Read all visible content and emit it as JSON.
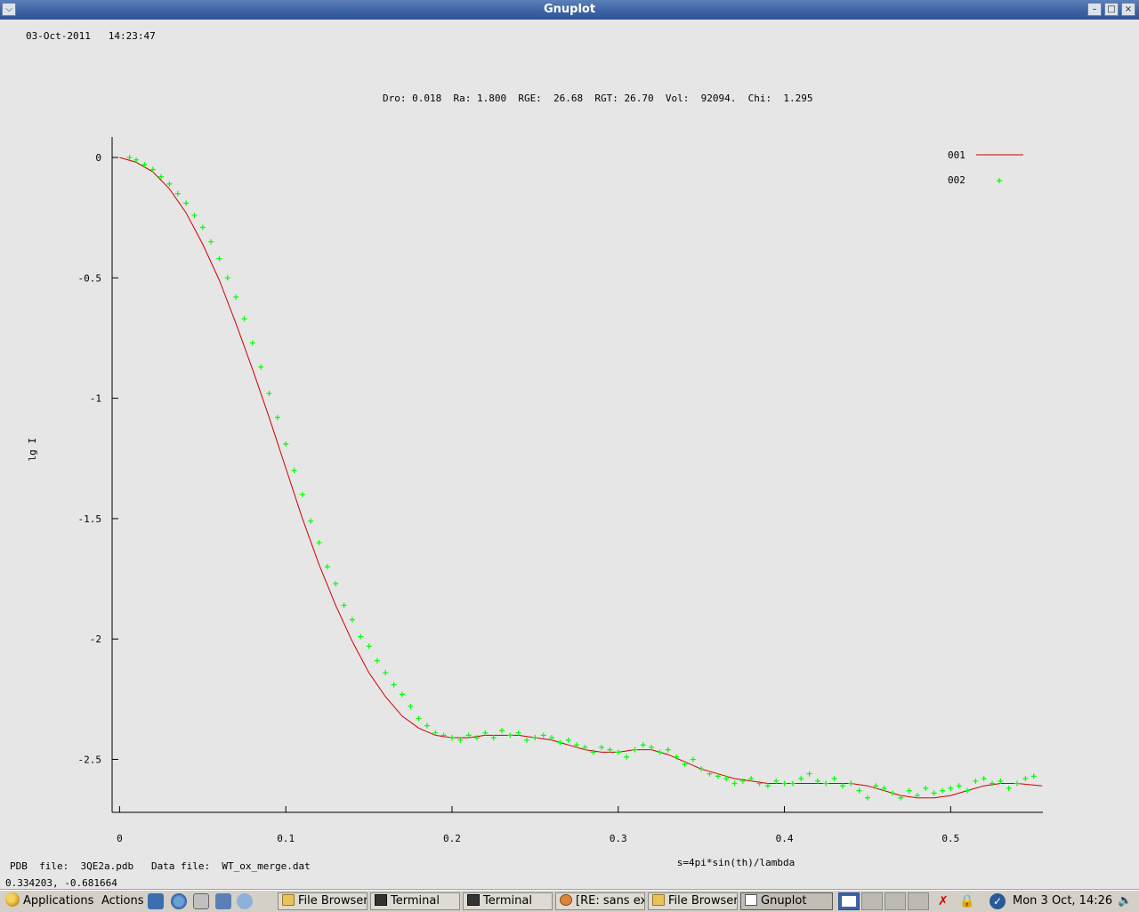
{
  "window": {
    "title": "Gnuplot",
    "buttons": [
      "minimize",
      "maximize",
      "close"
    ]
  },
  "plot": {
    "timestamp": "03-Oct-2011   14:23:47",
    "header": "Dro: 0.018  Ra: 1.800  RGE:  26.68  RGT: 26.70  Vol:  92094.  Chi:  1.295",
    "footer": "PDB  file:  3QE2a.pdb   Data file:  WT_ox_merge.dat",
    "coords": "0.334203, -0.681664"
  },
  "chart_data": {
    "type": "line",
    "xlabel": "s=4pi*sin(th)/lambda",
    "ylabel": "lg I",
    "xlim": [
      -0.0045,
      0.5555
    ],
    "ylim": [
      -2.72,
      0.085
    ],
    "xticks": [
      0,
      0.1,
      0.2,
      0.3,
      0.4,
      0.5
    ],
    "xtick_labels": [
      "0",
      "0.1",
      "0.2",
      "0.3",
      "0.4",
      "0.5"
    ],
    "yticks": [
      0,
      -0.5,
      -1,
      -1.5,
      -2,
      -2.5
    ],
    "ytick_labels": [
      "0",
      "-0.5",
      "-1",
      "-1.5",
      "-2",
      "-2.5"
    ],
    "grid": false,
    "legend_position": "top-right",
    "series": [
      {
        "name": "001",
        "style": "line",
        "color": "#cc0000",
        "x": [
          0.0,
          0.01,
          0.02,
          0.03,
          0.04,
          0.05,
          0.06,
          0.07,
          0.08,
          0.09,
          0.1,
          0.11,
          0.12,
          0.13,
          0.14,
          0.15,
          0.16,
          0.17,
          0.18,
          0.19,
          0.2,
          0.21,
          0.22,
          0.23,
          0.24,
          0.25,
          0.26,
          0.27,
          0.28,
          0.29,
          0.3,
          0.31,
          0.32,
          0.33,
          0.34,
          0.35,
          0.36,
          0.37,
          0.38,
          0.39,
          0.4,
          0.41,
          0.42,
          0.43,
          0.44,
          0.45,
          0.46,
          0.47,
          0.48,
          0.49,
          0.5,
          0.51,
          0.52,
          0.53,
          0.54,
          0.555
        ],
        "y": [
          0.0,
          -0.02,
          -0.06,
          -0.13,
          -0.23,
          -0.36,
          -0.51,
          -0.69,
          -0.88,
          -1.08,
          -1.29,
          -1.5,
          -1.69,
          -1.86,
          -2.01,
          -2.14,
          -2.24,
          -2.32,
          -2.37,
          -2.4,
          -2.41,
          -2.41,
          -2.4,
          -2.4,
          -2.4,
          -2.41,
          -2.42,
          -2.44,
          -2.46,
          -2.47,
          -2.47,
          -2.46,
          -2.46,
          -2.48,
          -2.51,
          -2.54,
          -2.56,
          -2.58,
          -2.59,
          -2.6,
          -2.6,
          -2.6,
          -2.6,
          -2.6,
          -2.6,
          -2.61,
          -2.63,
          -2.65,
          -2.66,
          -2.66,
          -2.65,
          -2.63,
          -2.61,
          -2.6,
          -2.6,
          -2.61
        ]
      },
      {
        "name": "002",
        "style": "points",
        "marker": "+",
        "color": "#00ff00",
        "x": [
          0.006,
          0.01,
          0.015,
          0.02,
          0.025,
          0.03,
          0.035,
          0.04,
          0.045,
          0.05,
          0.055,
          0.06,
          0.065,
          0.07,
          0.075,
          0.08,
          0.085,
          0.09,
          0.095,
          0.1,
          0.105,
          0.11,
          0.115,
          0.12,
          0.125,
          0.13,
          0.135,
          0.14,
          0.145,
          0.15,
          0.155,
          0.16,
          0.165,
          0.17,
          0.175,
          0.18,
          0.185,
          0.19,
          0.195,
          0.2,
          0.205,
          0.21,
          0.215,
          0.22,
          0.225,
          0.23,
          0.235,
          0.24,
          0.245,
          0.25,
          0.255,
          0.26,
          0.265,
          0.27,
          0.275,
          0.28,
          0.285,
          0.29,
          0.295,
          0.3,
          0.305,
          0.31,
          0.315,
          0.32,
          0.325,
          0.33,
          0.335,
          0.34,
          0.345,
          0.35,
          0.355,
          0.36,
          0.365,
          0.37,
          0.375,
          0.38,
          0.385,
          0.39,
          0.395,
          0.4,
          0.405,
          0.41,
          0.415,
          0.42,
          0.425,
          0.43,
          0.435,
          0.44,
          0.445,
          0.45,
          0.455,
          0.46,
          0.465,
          0.47,
          0.475,
          0.48,
          0.485,
          0.49,
          0.495,
          0.5,
          0.505,
          0.51,
          0.515,
          0.52,
          0.525,
          0.53,
          0.535,
          0.54,
          0.545,
          0.55
        ],
        "y": [
          0.0,
          -0.01,
          -0.03,
          -0.05,
          -0.08,
          -0.11,
          -0.15,
          -0.19,
          -0.24,
          -0.29,
          -0.35,
          -0.42,
          -0.5,
          -0.58,
          -0.67,
          -0.77,
          -0.87,
          -0.98,
          -1.08,
          -1.19,
          -1.3,
          -1.4,
          -1.51,
          -1.6,
          -1.7,
          -1.77,
          -1.86,
          -1.92,
          -1.99,
          -2.03,
          -2.09,
          -2.14,
          -2.19,
          -2.23,
          -2.28,
          -2.33,
          -2.36,
          -2.39,
          -2.4,
          -2.41,
          -2.42,
          -2.4,
          -2.41,
          -2.39,
          -2.41,
          -2.38,
          -2.4,
          -2.39,
          -2.42,
          -2.41,
          -2.4,
          -2.41,
          -2.43,
          -2.42,
          -2.44,
          -2.45,
          -2.47,
          -2.45,
          -2.46,
          -2.47,
          -2.49,
          -2.46,
          -2.44,
          -2.45,
          -2.47,
          -2.46,
          -2.49,
          -2.52,
          -2.5,
          -2.54,
          -2.56,
          -2.57,
          -2.58,
          -2.6,
          -2.59,
          -2.58,
          -2.6,
          -2.61,
          -2.59,
          -2.6,
          -2.6,
          -2.58,
          -2.56,
          -2.59,
          -2.6,
          -2.58,
          -2.61,
          -2.6,
          -2.63,
          -2.66,
          -2.61,
          -2.62,
          -2.64,
          -2.66,
          -2.63,
          -2.65,
          -2.62,
          -2.64,
          -2.63,
          -2.62,
          -2.61,
          -2.63,
          -2.59,
          -2.58,
          -2.6,
          -2.59,
          -2.62,
          -2.6,
          -2.58,
          -2.57
        ]
      }
    ]
  },
  "taskbar": {
    "menus": [
      "Applications",
      "Actions"
    ],
    "launchers": [
      "terminal-launcher-icon",
      "browser-launcher-icon",
      "mail-launcher-icon",
      "editor-launcher-icon",
      "network-launcher-icon"
    ],
    "tasks": [
      {
        "label": "File Browser:",
        "icon": "folder-icon",
        "active": false
      },
      {
        "label": "Terminal",
        "icon": "terminal-icon",
        "active": false
      },
      {
        "label": "Terminal",
        "icon": "terminal-icon",
        "active": false
      },
      {
        "label": "[RE: sans ex",
        "icon": "mail-icon",
        "active": false
      },
      {
        "label": "File Browser:",
        "icon": "folder-icon",
        "active": false
      },
      {
        "label": "Gnuplot",
        "icon": "document-icon",
        "active": true
      }
    ],
    "clock": "Mon  3 Oct, 14:26"
  }
}
